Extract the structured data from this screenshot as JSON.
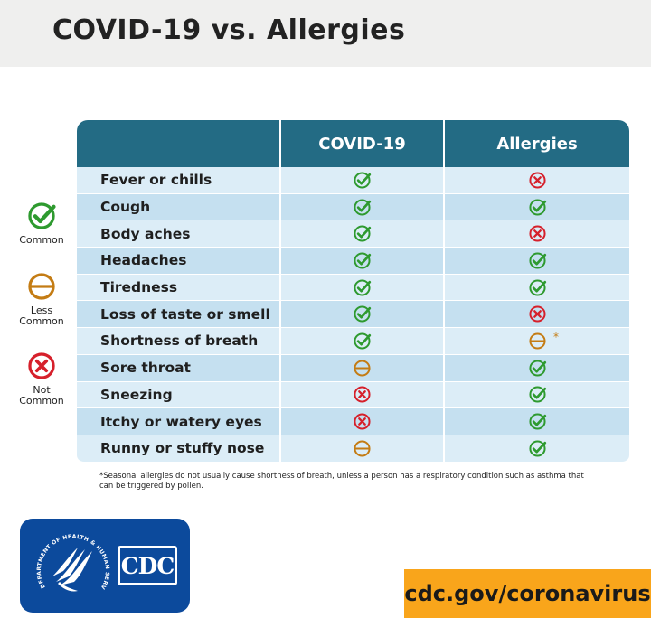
{
  "title": "COVID-19 vs. Allergies",
  "legend": [
    {
      "status": "common",
      "label_lines": [
        "Common"
      ]
    },
    {
      "status": "less",
      "label_lines": [
        "Less",
        "Common"
      ]
    },
    {
      "status": "not",
      "label_lines": [
        "Not",
        "Common"
      ]
    }
  ],
  "table": {
    "columns": [
      "",
      "COVID-19",
      "Allergies"
    ],
    "rows": [
      {
        "symptom": "Fever or chills",
        "covid": "common",
        "allergies": "not"
      },
      {
        "symptom": "Cough",
        "covid": "common",
        "allergies": "common"
      },
      {
        "symptom": "Body aches",
        "covid": "common",
        "allergies": "not"
      },
      {
        "symptom": "Headaches",
        "covid": "common",
        "allergies": "common"
      },
      {
        "symptom": "Tiredness",
        "covid": "common",
        "allergies": "common"
      },
      {
        "symptom": "Loss of taste or smell",
        "covid": "common",
        "allergies": "not"
      },
      {
        "symptom": "Shortness of breath",
        "covid": "common",
        "allergies": "less",
        "allergies_mark": "*"
      },
      {
        "symptom": "Sore throat",
        "covid": "less",
        "allergies": "common"
      },
      {
        "symptom": "Sneezing",
        "covid": "not",
        "allergies": "common"
      },
      {
        "symptom": "Itchy or watery eyes",
        "covid": "not",
        "allergies": "common"
      },
      {
        "symptom": "Runny or stuffy nose",
        "covid": "less",
        "allergies": "common"
      }
    ]
  },
  "footnote": "*Seasonal allergies do not usually cause shortness of breath, unless a person has a respiratory condition such as asthma that can be triggered by pollen.",
  "logo": {
    "text": "CDC",
    "seal_icon": "hhs-eagle-seal-icon",
    "seal_text": "DEPARTMENT OF HEALTH & HUMAN SERVICES USA"
  },
  "url": "cdc.gov/coronavirus",
  "colors": {
    "header": "#236b84",
    "row_light": "#dcedf7",
    "row_dark": "#c5e0f0",
    "common": "#2e9a2f",
    "less": "#c47c14",
    "not": "#d6202b",
    "logo_bg": "#0c4a9c",
    "url_banner": "#f9a51b",
    "top_bar": "#efefee"
  },
  "icons": {
    "common": "check-circle-icon",
    "less": "minus-circle-icon",
    "not": "x-circle-icon"
  }
}
